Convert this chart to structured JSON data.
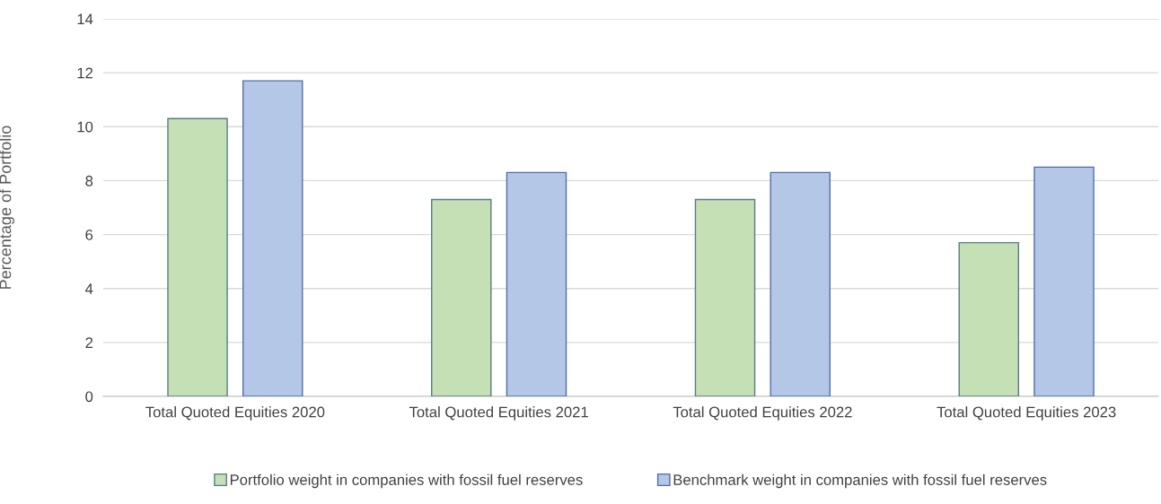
{
  "chart_data": {
    "type": "bar",
    "ylabel": "Percentage of Portfolio",
    "categories": [
      "Total Quoted Equities 2020",
      "Total Quoted Equities 2021",
      "Total Quoted Equities 2022",
      "Total Quoted Equities 2023"
    ],
    "series": [
      {
        "name": "Portfolio weight in companies with fossil fuel reserves",
        "color": "#c5e0b4",
        "values": [
          10.3,
          7.3,
          7.3,
          5.7
        ]
      },
      {
        "name": "Benchmark weight in companies with fossil fuel reserves",
        "color": "#b4c7e7",
        "values": [
          11.7,
          8.3,
          8.3,
          8.5
        ]
      }
    ],
    "ylim": [
      0,
      14
    ],
    "yticks": [
      0,
      2,
      4,
      6,
      8,
      10,
      12,
      14
    ],
    "grid": "y",
    "legend": "bottom"
  }
}
